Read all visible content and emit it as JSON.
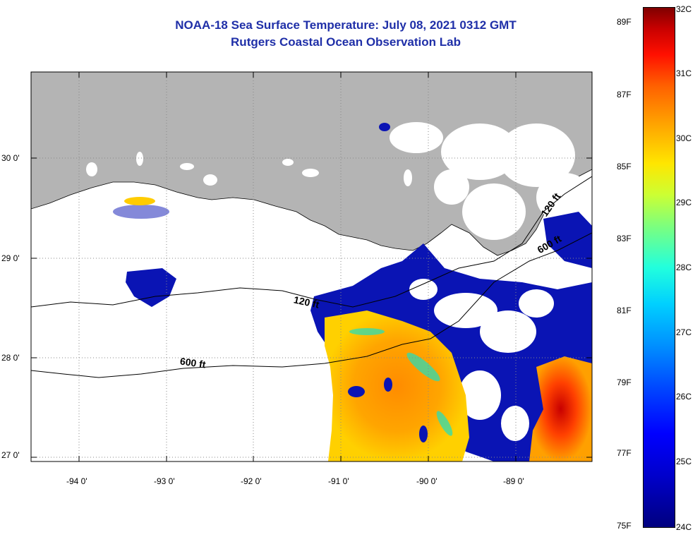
{
  "title": {
    "line1": "NOAA-18 Sea Surface Temperature:  July 08, 2021 0312 GMT",
    "line2": "Rutgers Coastal Ocean Observation Lab"
  },
  "lat_labels": [
    "30 0'",
    "29 0'",
    "28 0'",
    "27 0'"
  ],
  "lon_labels": [
    "-94 0'",
    "-93 0'",
    "-92 0'",
    "-91 0'",
    "-90 0'",
    "-89 0'"
  ],
  "contours": {
    "c120_left": "120 ft",
    "c120_right": "120 ft",
    "c600_left": "600 ft",
    "c600_right": "600 ft"
  },
  "colorbar": {
    "fahrenheit": [
      "89F",
      "87F",
      "85F",
      "83F",
      "81F",
      "79F",
      "77F",
      "75F"
    ],
    "celsius": [
      "32C",
      "31C",
      "30C",
      "29C",
      "28C",
      "27C",
      "26C",
      "25C",
      "24C"
    ],
    "colors": {
      "min": "#00007f",
      "mid": "#22ffdd",
      "max": "#800000"
    }
  },
  "colors": {
    "land": "#b4b4b4",
    "title": "#1f2fa8"
  }
}
